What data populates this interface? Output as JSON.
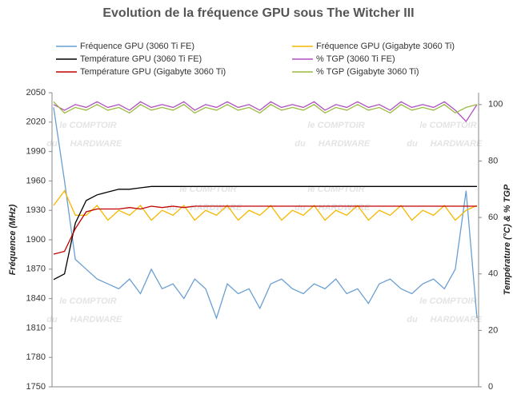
{
  "chart_data": {
    "type": "line",
    "title": "Evolution de la fréquence GPU sous The Witcher III",
    "y_label": "Fréquence (MHz)",
    "y2_label": "Température  (°C) & % TGP",
    "watermark": [
      "le COMPTOIR",
      "du",
      "HARDWARE"
    ],
    "ylim": [
      1750,
      2050
    ],
    "yticks": [
      1750,
      1780,
      1810,
      1840,
      1870,
      1900,
      1930,
      1960,
      1990,
      2020,
      2050
    ],
    "y2lim": [
      0,
      104.2
    ],
    "y2ticks": [
      0,
      20,
      40,
      60,
      80,
      100
    ],
    "legend": "top",
    "series": [
      {
        "name": "Fréquence GPU (3060 Ti FE)",
        "color": "#6a9fd2",
        "values": [
          2035,
          1960,
          1880,
          1870,
          1860,
          1855,
          1850,
          1860,
          1845,
          1870,
          1850,
          1855,
          1840,
          1860,
          1850,
          1820,
          1855,
          1845,
          1850,
          1830,
          1855,
          1860,
          1850,
          1845,
          1855,
          1850,
          1860,
          1845,
          1850,
          1835,
          1855,
          1860,
          1850,
          1845,
          1855,
          1860,
          1850,
          1870,
          1950,
          1820
        ]
      },
      {
        "name": "Fréquence GPU (Gigabyte 3060 Ti)",
        "color": "#f5b800",
        "values": [
          1935,
          1950,
          1925,
          1925,
          1935,
          1920,
          1930,
          1925,
          1935,
          1920,
          1930,
          1925,
          1935,
          1920,
          1930,
          1925,
          1935,
          1920,
          1930,
          1925,
          1935,
          1920,
          1930,
          1925,
          1935,
          1920,
          1930,
          1925,
          1935,
          1920,
          1930,
          1925,
          1935,
          1920,
          1930,
          1925,
          1935,
          1920,
          1930,
          1935
        ]
      },
      {
        "name": "Température GPU (3060 Ti FE)",
        "color": "#000000",
        "axis": "y2",
        "values": [
          38,
          40,
          58,
          66,
          68,
          69,
          70,
          70,
          70.5,
          71,
          71,
          71,
          71,
          71,
          71,
          71,
          71,
          71,
          71,
          71,
          71,
          71,
          71,
          71,
          71,
          71,
          71,
          71,
          71,
          71,
          71,
          71,
          71,
          71,
          71,
          71,
          71,
          71,
          71,
          71
        ]
      },
      {
        "name": "% TGP (3060 Ti FE)",
        "color": "#b04fc0",
        "axis": "y2",
        "values": [
          100,
          98,
          100,
          99,
          101,
          99,
          100,
          98,
          101,
          99,
          100,
          99,
          101,
          98,
          100,
          99,
          101,
          99,
          100,
          98,
          101,
          99,
          100,
          99,
          101,
          98,
          100,
          99,
          101,
          99,
          100,
          98,
          101,
          99,
          100,
          99,
          101,
          98,
          94,
          100
        ]
      },
      {
        "name": "Température GPU (Gigabyte 3060 Ti)",
        "color": "#c00000",
        "axis": "y2",
        "values": [
          47,
          48,
          56,
          62,
          63,
          63,
          63,
          63.5,
          63,
          64,
          63.5,
          64,
          63.5,
          64,
          64,
          64,
          64,
          64,
          64,
          64,
          64,
          64,
          64,
          64,
          64,
          64,
          64,
          64,
          64,
          64,
          64,
          64,
          64,
          64,
          64,
          64,
          64,
          64,
          64,
          64
        ]
      },
      {
        "name": "% TGP (Gigabyte 3060 Ti)",
        "color": "#9bbb40",
        "axis": "y2",
        "values": [
          101,
          97,
          99,
          98,
          100,
          98,
          99,
          97,
          100,
          98,
          99,
          98,
          100,
          97,
          99,
          98,
          100,
          98,
          99,
          97,
          100,
          98,
          99,
          98,
          100,
          97,
          99,
          98,
          100,
          98,
          99,
          97,
          100,
          98,
          99,
          98,
          100,
          97,
          99,
          100
        ]
      }
    ]
  }
}
